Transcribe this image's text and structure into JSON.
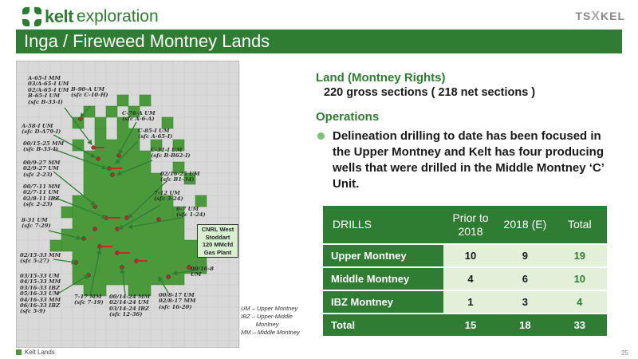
{
  "header": {
    "logo_word": "kelt",
    "logo_sub": "exploration",
    "ticker_left": "TS",
    "ticker_x": "X",
    "ticker_right": "KEL"
  },
  "title": "Inga / Fireweed Montney Lands",
  "land": {
    "heading": "Land (Montney Rights)",
    "value": "220 gross sections ( 218 net sections )"
  },
  "operations": {
    "heading": "Operations",
    "bullet": "Delineation drilling to date has been focused in the Upper Montney and Kelt has four producing wells that were drilled in the Middle Montney ‘C’ Unit."
  },
  "drills_table": {
    "header": [
      "DRILLS",
      "Prior to 2018",
      "2018 (E)",
      "Total"
    ],
    "rows": [
      {
        "label": "Upper Montney",
        "prior": "10",
        "e2018": "9",
        "total": "19"
      },
      {
        "label": "Middle Montney",
        "prior": "4",
        "e2018": "6",
        "total": "10"
      },
      {
        "label": "IBZ Montney",
        "prior": "1",
        "e2018": "3",
        "total": "4"
      },
      {
        "label": "Total",
        "prior": "15",
        "e2018": "18",
        "total": "33"
      }
    ]
  },
  "map": {
    "labels": [
      "A-65-I MM\n03/A-65-I UM\n02/A-65-I UM\nB-65-I UM\n(sfc B-33-I)",
      "B-90-A UM\n(sfc C-10-H)",
      "C-76-A UM\n(sfc A-6-A)",
      "A-58-I UM\n(sfc D-A79-I)",
      "C-85-I UM\n(sfc A-65-I)",
      "00/15-25 MM\n(sfc B-33-I)",
      "C-31-I UM\n(sfc B-B62-I)",
      "00/9-27 MM\n02/9-27 UM\n(sfc 2-23)",
      "02/16-25 UM\n(sfc B1-34)",
      "00/7-11 MM\n02/7-11 UM\n02/8-11 IBZ\n(sfc 2-23)",
      "7-12 UM\n(sfc 3-24)",
      "6-7 UM\n(sfc 1-24)",
      "8-31 UM\n(sfc 7-29)",
      "02/15-33 MM\n(sfc 5-27)",
      "00/16-8\nUM",
      "03/15-33 UM\n04/15-33 MM\n03/16-33 IBZ\n05/16-33 UM\n04/16-33 MM\n06/16-33 IBZ\n(sfc 5-9)",
      "7-17 MM\n(sfc 7-19)",
      "00/14-24 MM\n02/14-24 UM\n03/14-24 IBZ\n(sfc 12-36)",
      "00/8-17 UM\n02/8-17 MM\n(sfc 16-20)"
    ],
    "cnrl_box": "CNRL West\nStoddart\n120 MMcfd\nGas Plant",
    "legend": "Kelt Lands",
    "abbreviations": [
      "UM – Upper Montney",
      "IBZ – Upper-Middle\n         Montney",
      "MM – Middle Montney"
    ],
    "colors": {
      "land": "#4a9a3c",
      "well": "#c62828",
      "arrow": "#2e7d32"
    }
  },
  "page_number": "25"
}
